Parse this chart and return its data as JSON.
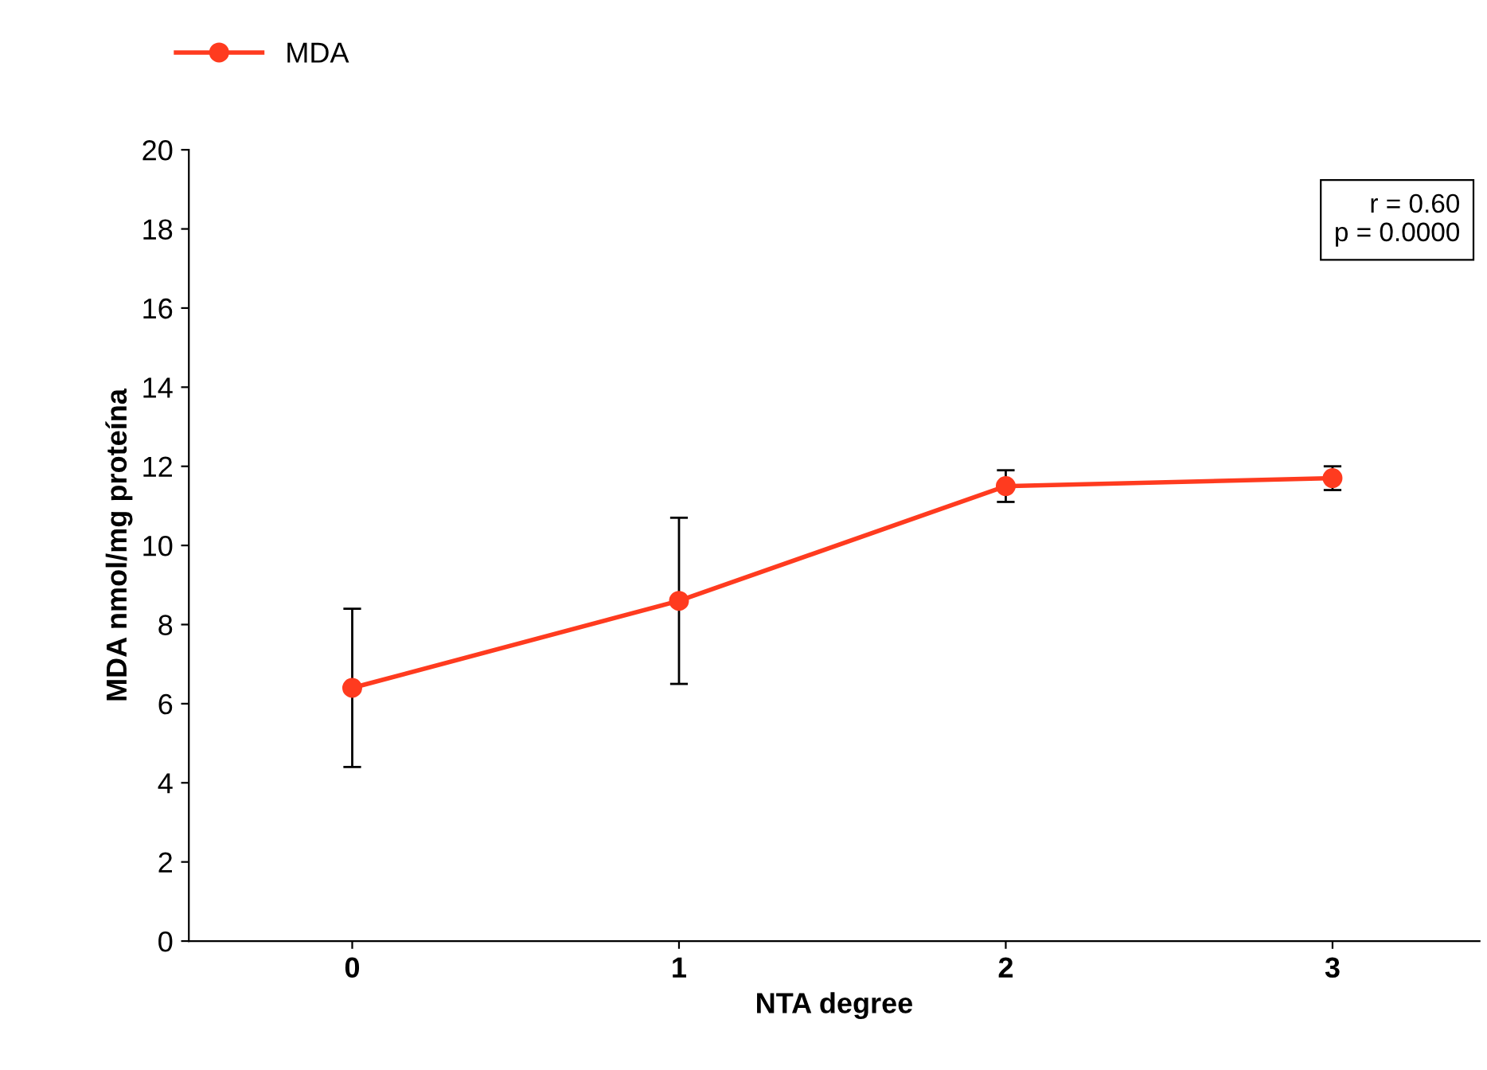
{
  "chart_data": {
    "type": "line",
    "xlabel": "NTA degree",
    "ylabel": "MDA nmol/mg proteína",
    "x": [
      0,
      1,
      2,
      3
    ],
    "xlim": [
      -0.5,
      3.45
    ],
    "xticks": [
      0,
      1,
      2,
      3
    ],
    "ylim": [
      0,
      20
    ],
    "yticks": [
      0,
      2,
      4,
      6,
      8,
      10,
      12,
      14,
      16,
      18,
      20
    ],
    "series": [
      {
        "name": "MDA",
        "color": "#ff3b1f",
        "values": [
          6.4,
          8.6,
          11.5,
          11.7
        ],
        "errors": [
          2.0,
          2.1,
          0.4,
          0.3
        ]
      }
    ],
    "annotations": [
      "r = 0.60\np = 0.0000"
    ],
    "marker": "circle",
    "line_style": "solid",
    "grid": false,
    "legend": "top left"
  }
}
